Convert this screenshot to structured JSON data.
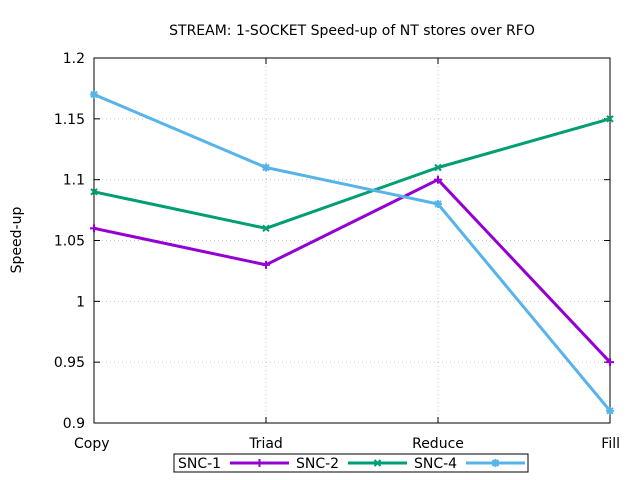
{
  "chart_data": {
    "type": "line",
    "title": "STREAM: 1-SOCKET Speed-up of NT stores over RFO",
    "xlabel": "",
    "ylabel": "Speed-up",
    "categories": [
      "Copy",
      "Triad",
      "Reduce",
      "Fill"
    ],
    "ylim": [
      0.9,
      1.2
    ],
    "yticks": [
      "0.9",
      "0.95",
      "1",
      "1.05",
      "1.1",
      "1.15",
      "1.2"
    ],
    "grid": true,
    "legend_position": "bottom",
    "series": [
      {
        "name": "SNC-1",
        "values": [
          1.06,
          1.03,
          1.1,
          0.95
        ],
        "color": "#9400d3",
        "marker": "plus"
      },
      {
        "name": "SNC-2",
        "values": [
          1.09,
          1.06,
          1.11,
          1.15
        ],
        "color": "#009e73",
        "marker": "cross"
      },
      {
        "name": "SNC-4",
        "values": [
          1.17,
          1.11,
          1.08,
          0.91
        ],
        "color": "#56b4e9",
        "marker": "star"
      }
    ]
  }
}
